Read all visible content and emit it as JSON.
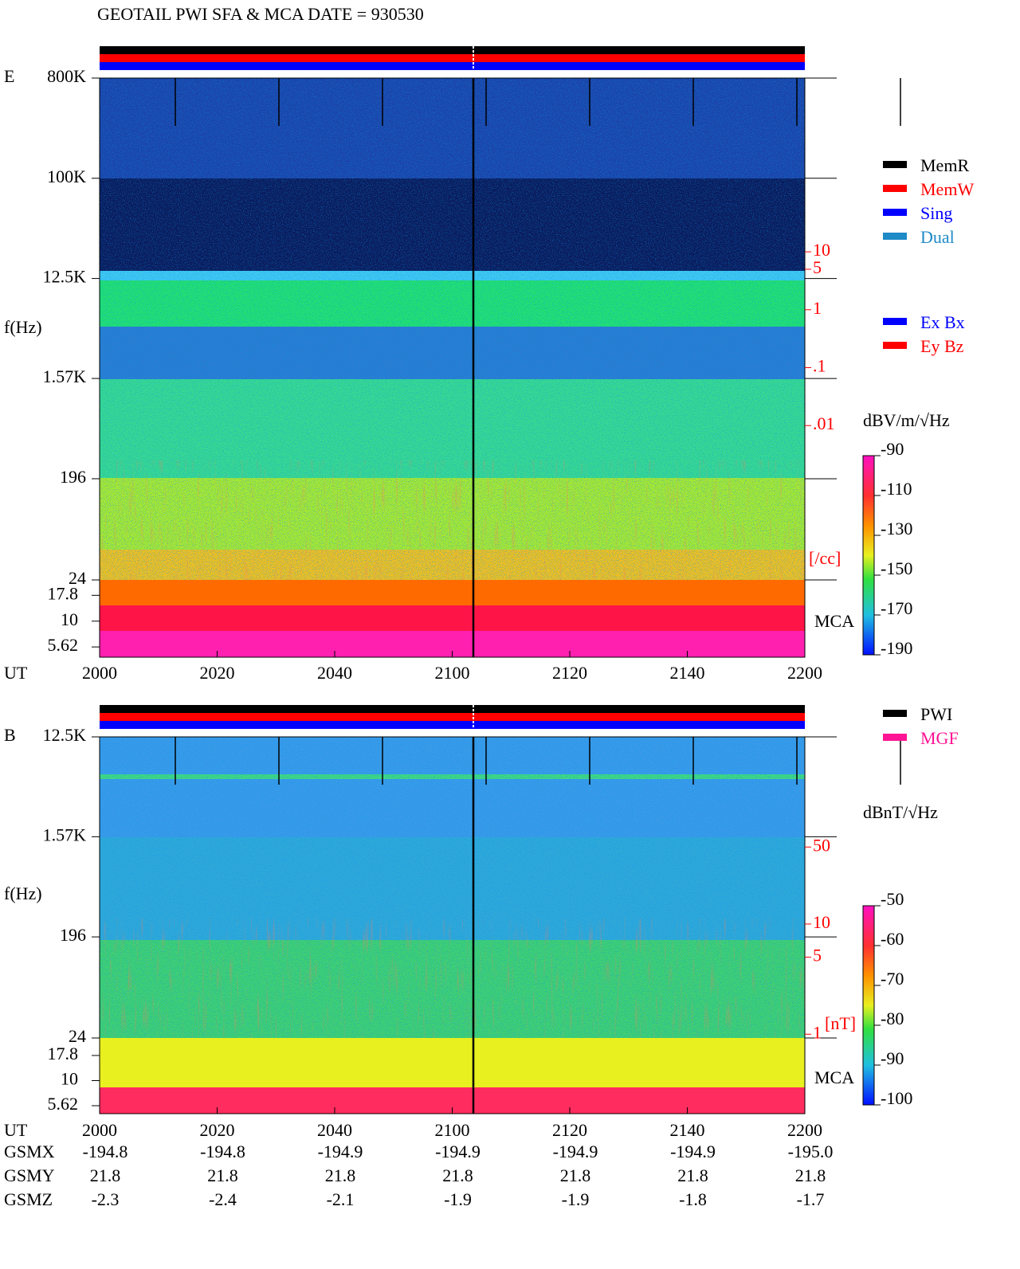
{
  "title": "GEOTAIL  PWI SFA & MCA   DATE = 930530",
  "chart_data": [
    {
      "type": "spectrogram",
      "panel_label": "E",
      "ylabel": "f(Hz)",
      "xlabel": "UT",
      "yscale": "log",
      "ylim": [
        24,
        800000
      ],
      "yticks": [
        {
          "value": 800000,
          "label": "800K"
        },
        {
          "value": 100000,
          "label": "100K"
        },
        {
          "value": 12500,
          "label": "12.5K"
        },
        {
          "value": 1570,
          "label": "1.57K"
        },
        196,
        24
      ],
      "mca_label": "MCA",
      "mca_ylim": [
        4.47,
        25.1
      ],
      "mca_yticks": [
        17.8,
        10,
        5.62
      ],
      "x_labels": [
        "2000",
        "2020",
        "2040",
        "2100",
        "2120",
        "2140",
        "2200"
      ],
      "y2label": "[/cc]",
      "y2color": "#ff0000",
      "y2lim": [
        1e-06,
        10000
      ],
      "y2ticks": [
        10,
        5,
        1,
        {
          "value": 0.1,
          "label": ".1"
        },
        {
          "value": 0.01,
          "label": ".01"
        }
      ],
      "colorbar": {
        "label": "dBV/m/√Hz",
        "clim": [
          -190,
          -90
        ],
        "ticks": [
          -90,
          -110,
          -130,
          -150,
          -170,
          -190
        ]
      },
      "legend": [
        [
          {
            "name": "MemR",
            "color": "#000000"
          },
          {
            "name": "MemW",
            "color": "#ff0000"
          },
          {
            "name": "Sing",
            "color": "#0000ff"
          },
          {
            "name": "Dual",
            "color": "#1e8ac8"
          }
        ],
        [
          {
            "name": "Ex Bx",
            "color": "#0000ff"
          },
          {
            "name": "Ey Bz",
            "color": "#ff0000"
          }
        ]
      ]
    },
    {
      "type": "spectrogram",
      "panel_label": "B",
      "ylabel": "f(Hz)",
      "xlabel": "UT",
      "yscale": "log",
      "ylim": [
        24,
        12500
      ],
      "yticks": [
        {
          "value": 12500,
          "label": "12.5K"
        },
        {
          "value": 1570,
          "label": "1.57K"
        },
        196,
        24
      ],
      "mca_label": "MCA",
      "mca_ylim": [
        4.68,
        26.6
      ],
      "mca_yticks": [
        17.8,
        10,
        5.62
      ],
      "x_labels": [
        "2000",
        "2020",
        "2040",
        "2100",
        "2120",
        "2140",
        "2200"
      ],
      "y2label": "[nT]",
      "y2color": "#ff0000",
      "y2lim": [
        0.19,
        500
      ],
      "y2ticks": [
        50,
        10,
        5,
        1
      ],
      "colorbar": {
        "label": "dBnT/√Hz",
        "clim": [
          -100,
          -50
        ],
        "ticks": [
          -50,
          -60,
          -70,
          -80,
          -90,
          -100
        ]
      },
      "legend": [
        [
          {
            "name": "PWI",
            "color": "#000000"
          },
          {
            "name": "MGF",
            "color": "#ff1493"
          }
        ]
      ]
    }
  ],
  "orbit": {
    "rows": [
      {
        "name": "GSMX",
        "values": [
          "-194.8",
          "-194.8",
          "-194.9",
          "-194.9",
          "-194.9",
          "-194.9",
          "-195.0"
        ]
      },
      {
        "name": "GSMY",
        "values": [
          "21.8",
          "21.8",
          "21.8",
          "21.8",
          "21.8",
          "21.8",
          "21.8"
        ]
      },
      {
        "name": "GSMZ",
        "values": [
          "-2.3",
          "-2.4",
          "-2.1",
          "-1.9",
          "-1.9",
          "-1.8",
          "-1.7"
        ]
      }
    ]
  }
}
